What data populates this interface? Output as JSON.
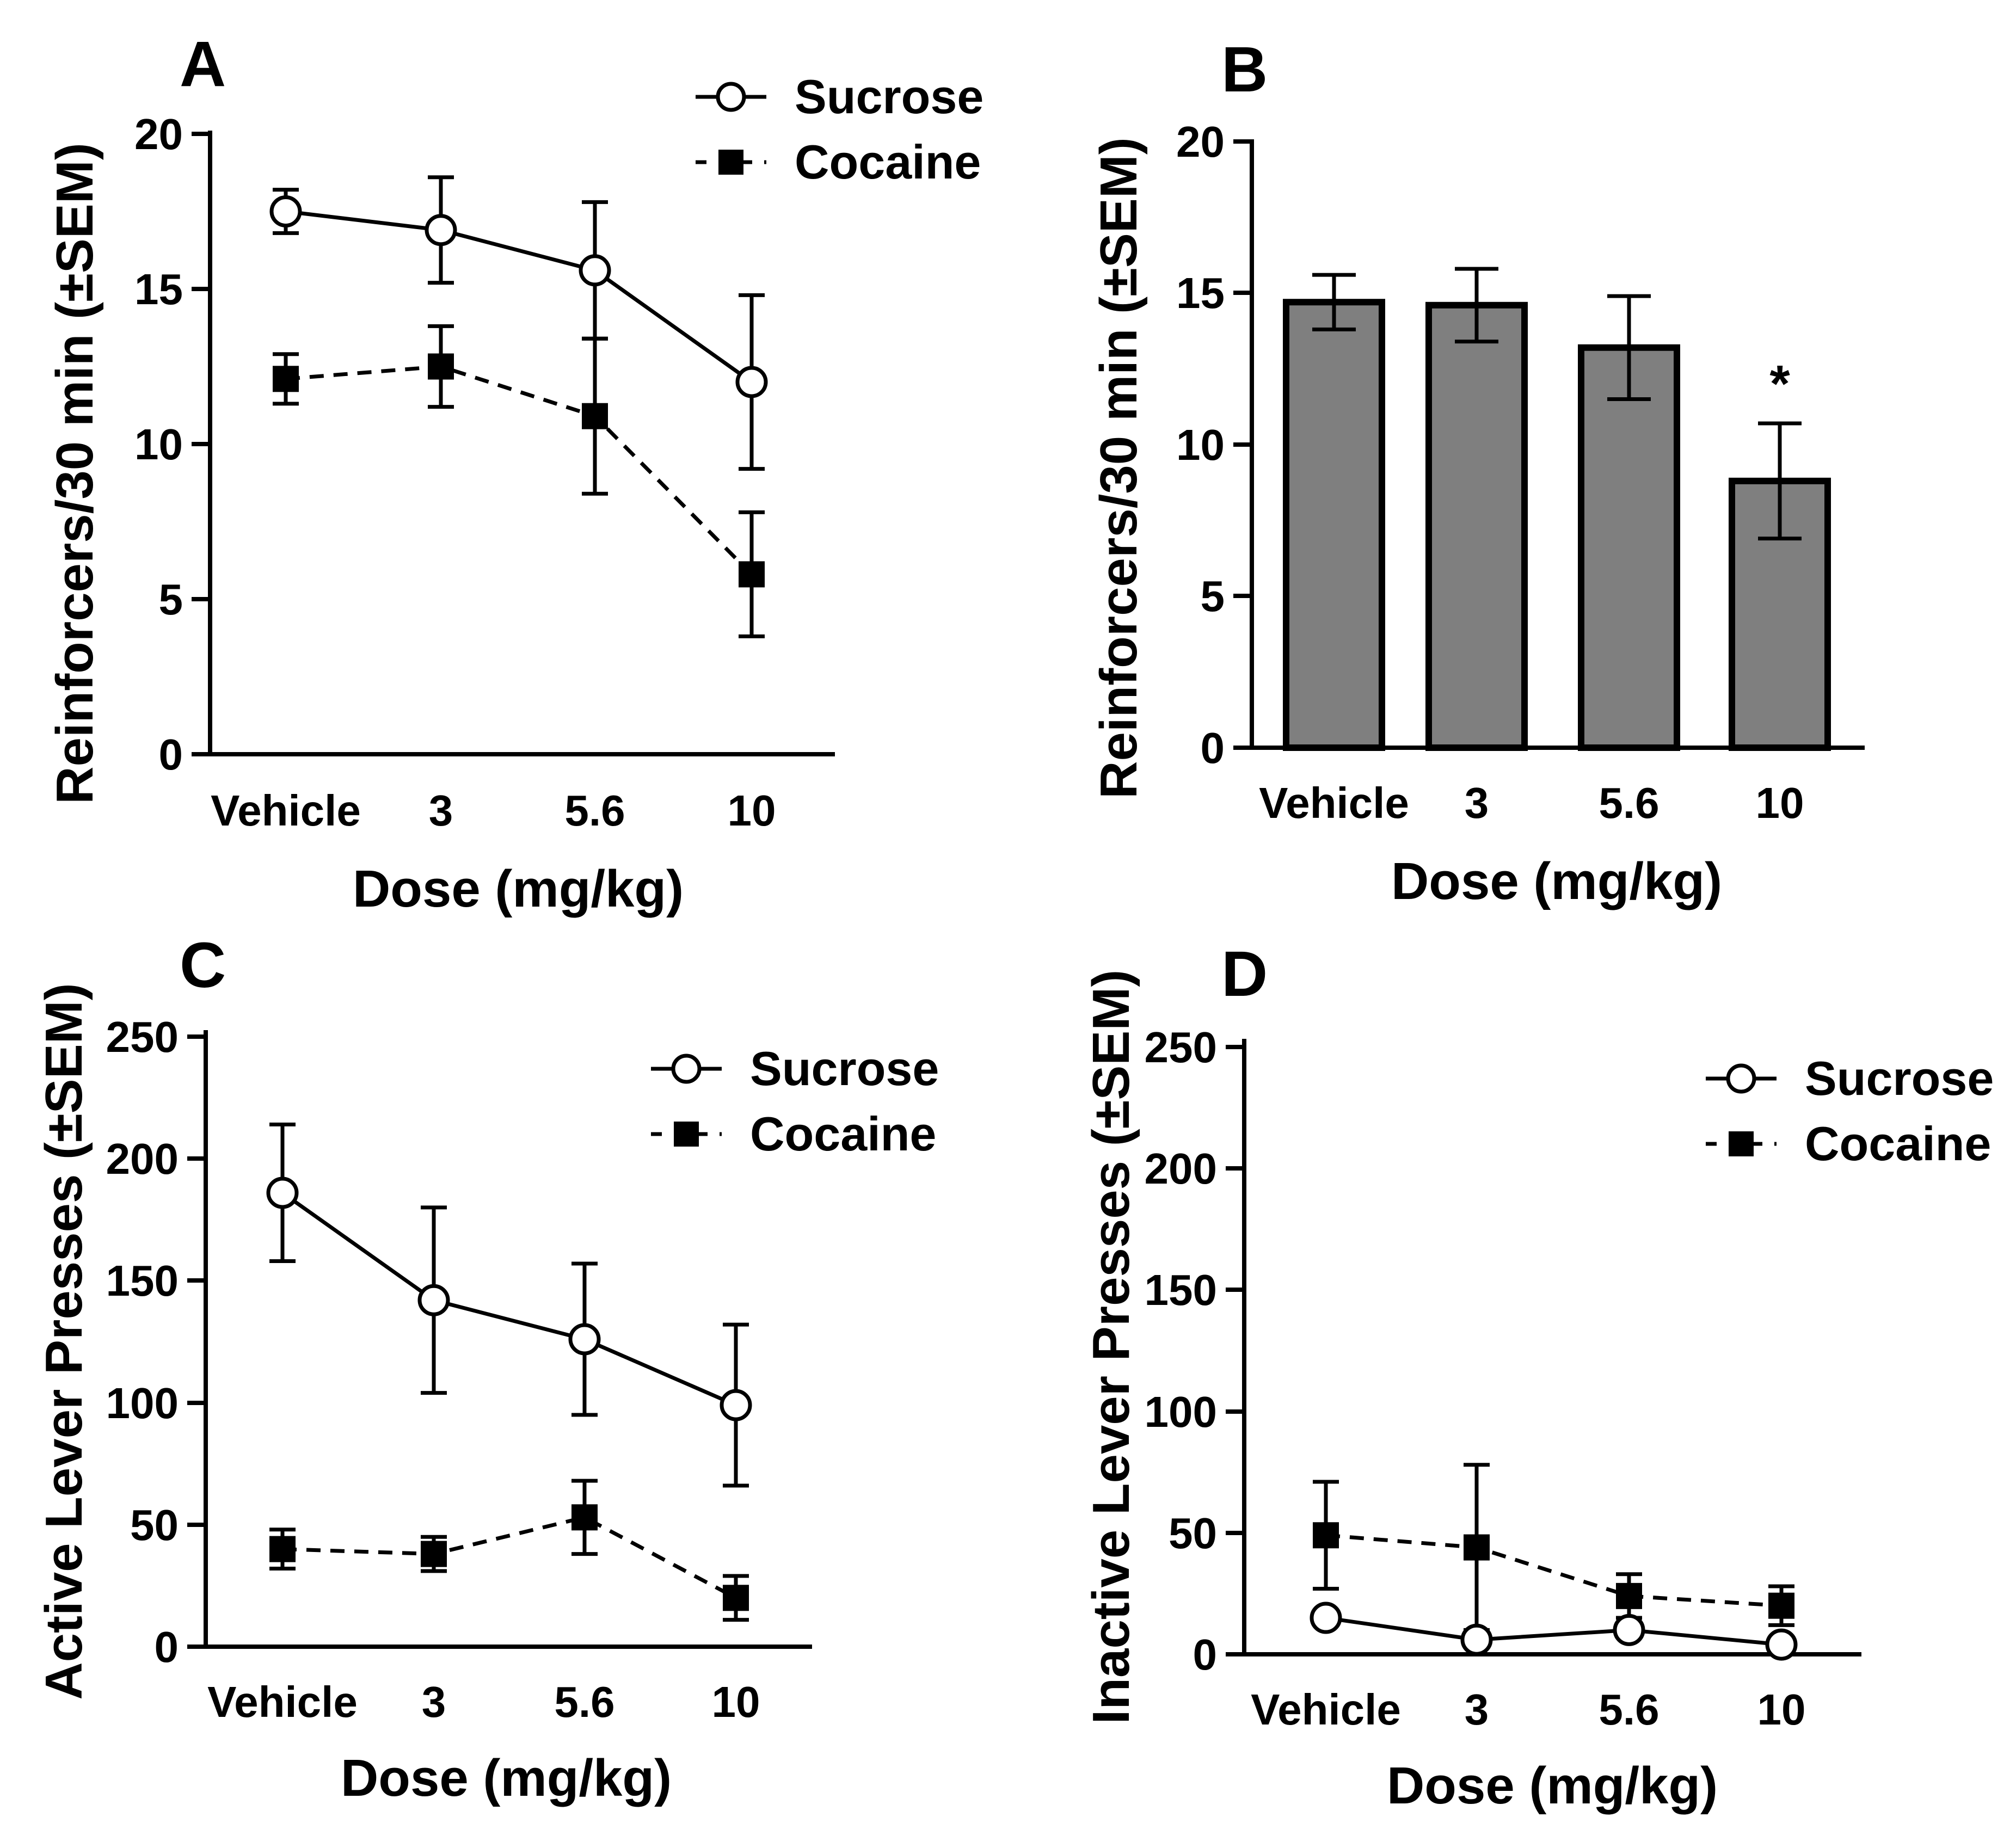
{
  "chart_data": [
    {
      "id": "A",
      "type": "line",
      "panel_label": "A",
      "xlabel": "Dose (mg/kg)",
      "ylabel": "Reinforcers/30 min (±SEM)",
      "categories": [
        "Vehicle",
        "3",
        "5.6",
        "10"
      ],
      "ylim": [
        0,
        20
      ],
      "yticks": [
        "0",
        "5",
        "10",
        "15",
        "20"
      ],
      "legend_position": "top-right",
      "series": [
        {
          "name": "Sucrose",
          "style": "solid-open-circle",
          "values": [
            17.5,
            16.9,
            15.6,
            12.0
          ],
          "sem": [
            0.7,
            1.7,
            2.2,
            2.8
          ]
        },
        {
          "name": "Cocaine",
          "style": "dashed-filled-square",
          "values": [
            12.1,
            12.5,
            10.9,
            5.8
          ],
          "sem": [
            0.8,
            1.3,
            2.5,
            2.0
          ]
        }
      ]
    },
    {
      "id": "B",
      "type": "bar",
      "panel_label": "B",
      "xlabel": "Dose (mg/kg)",
      "ylabel": "Reinforcers/30 min (±SEM)",
      "categories": [
        "Vehicle",
        "3",
        "5.6",
        "10"
      ],
      "ylim": [
        0,
        20
      ],
      "yticks": [
        "0",
        "5",
        "10",
        "15",
        "20"
      ],
      "values": [
        14.7,
        14.6,
        13.2,
        8.8
      ],
      "sem": [
        0.9,
        1.2,
        1.7,
        1.9
      ],
      "annotation": {
        "text": "*",
        "category": "10"
      }
    },
    {
      "id": "C",
      "type": "line",
      "panel_label": "C",
      "xlabel": "Dose (mg/kg)",
      "ylabel": "Active Lever Presses (±SEM)",
      "categories": [
        "Vehicle",
        "3",
        "5.6",
        "10"
      ],
      "ylim": [
        0,
        250
      ],
      "yticks": [
        "0",
        "50",
        "100",
        "150",
        "200",
        "250"
      ],
      "legend_position": "top-right",
      "series": [
        {
          "name": "Sucrose",
          "style": "solid-open-circle",
          "values": [
            186,
            142,
            126,
            99
          ],
          "sem": [
            28,
            38,
            31,
            33
          ]
        },
        {
          "name": "Cocaine",
          "style": "dashed-filled-square",
          "values": [
            40,
            38,
            53,
            20
          ],
          "sem": [
            8,
            7,
            15,
            9
          ]
        }
      ]
    },
    {
      "id": "D",
      "type": "line",
      "panel_label": "D",
      "xlabel": "Dose (mg/kg)",
      "ylabel": "Inactive Lever Presses (±SEM)",
      "categories": [
        "Vehicle",
        "3",
        "5.6",
        "10"
      ],
      "ylim": [
        0,
        250
      ],
      "yticks": [
        "0",
        "50",
        "100",
        "150",
        "200",
        "250"
      ],
      "legend_position": "top-right",
      "series": [
        {
          "name": "Sucrose",
          "style": "solid-open-circle",
          "values": [
            15,
            6,
            10,
            4
          ],
          "sem": [
            0,
            0,
            0,
            0
          ]
        },
        {
          "name": "Cocaine",
          "style": "dashed-filled-square",
          "values": [
            49,
            44,
            24,
            20
          ],
          "sem": [
            22,
            34,
            9,
            8
          ]
        }
      ]
    }
  ]
}
